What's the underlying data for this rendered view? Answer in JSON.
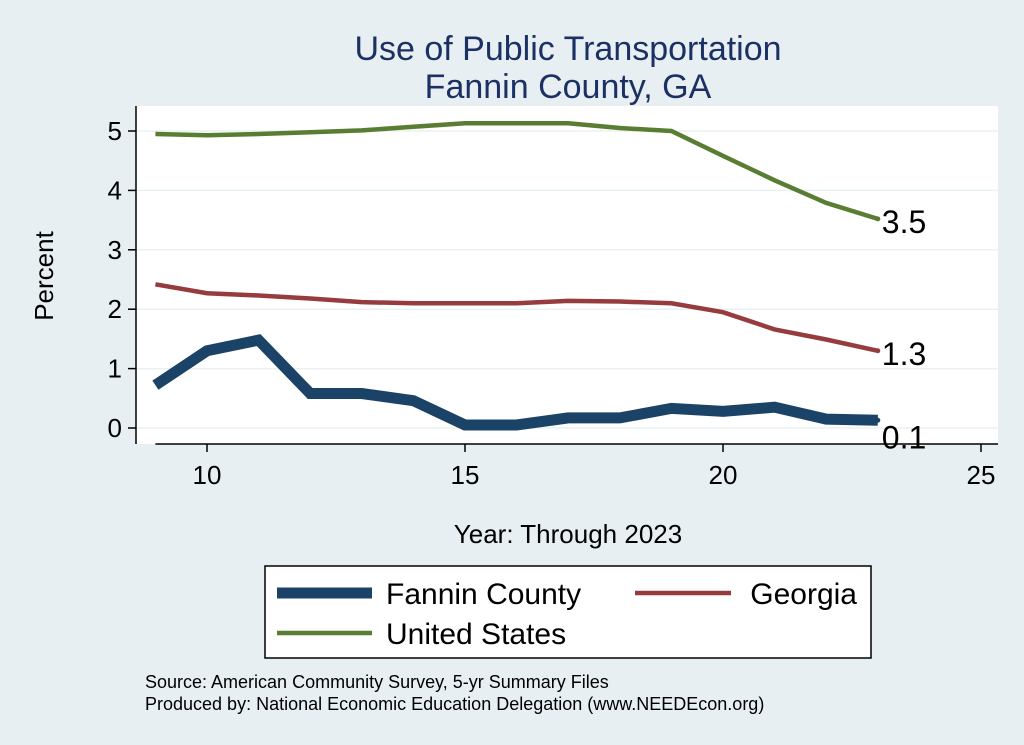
{
  "chart_data": {
    "type": "line",
    "title_line1": "Use of Public Transportation",
    "title_line2": "Fannin County, GA",
    "xlabel": "Year: Through 2023",
    "ylabel": "Percent",
    "xlim": [
      9,
      25
    ],
    "ylim": [
      0,
      5.2
    ],
    "x_ticks": [
      10,
      15,
      20,
      25
    ],
    "y_ticks": [
      0,
      1,
      2,
      3,
      4,
      5
    ],
    "grid": true,
    "x": [
      9,
      10,
      11,
      12,
      13,
      14,
      15,
      16,
      17,
      18,
      19,
      20,
      21,
      22,
      23
    ],
    "series": [
      {
        "name": "Fannin County",
        "color": "#1b4368",
        "values": [
          0.72,
          1.3,
          1.48,
          0.58,
          0.58,
          0.46,
          0.05,
          0.05,
          0.17,
          0.17,
          0.33,
          0.28,
          0.35,
          0.15,
          0.13
        ],
        "end_label": "0.1"
      },
      {
        "name": "Georgia",
        "color": "#963c3e",
        "values": [
          2.42,
          2.27,
          2.23,
          2.18,
          2.12,
          2.1,
          2.1,
          2.1,
          2.14,
          2.13,
          2.1,
          1.95,
          1.66,
          1.49,
          1.3
        ],
        "end_label": "1.3"
      },
      {
        "name": "United States",
        "color": "#597d32",
        "values": [
          4.95,
          4.93,
          4.95,
          4.98,
          5.01,
          5.07,
          5.13,
          5.13,
          5.13,
          5.05,
          5.0,
          4.58,
          4.17,
          3.79,
          3.52
        ],
        "end_label": "3.5"
      }
    ],
    "legend": {
      "placement": "bottom",
      "entries": [
        "Fannin County",
        "Georgia",
        "United States"
      ]
    },
    "notes": [
      "Source: American Community Survey, 5-yr Summary Files",
      "Produced by: National Economic Education Delegation (www.NEEDEcon.org)"
    ]
  }
}
